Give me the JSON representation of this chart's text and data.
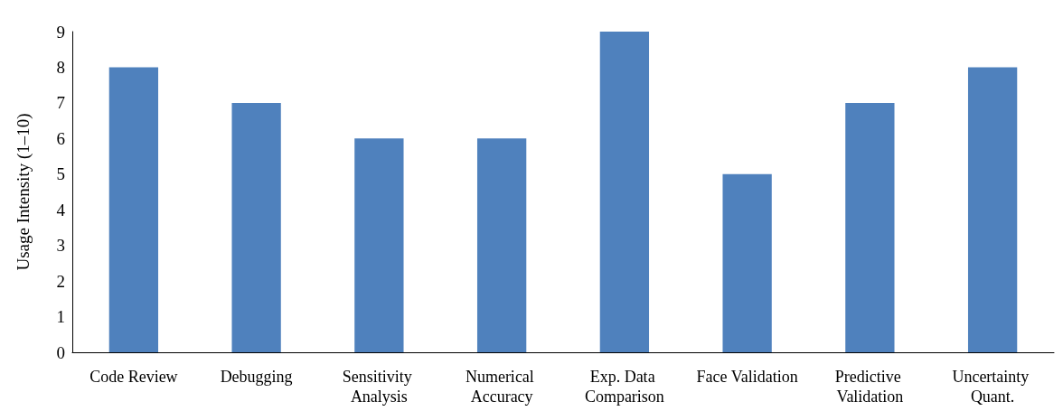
{
  "chart_data": {
    "type": "bar",
    "ylabel": "Usage Intensity (1–10)",
    "categories": [
      "Code Review",
      "Debugging",
      "Sensitivity Analysis",
      "Numerical Accuracy",
      "Exp. Data Comparison",
      "Face Validation",
      "Predictive Validation",
      "Uncertainty Quant."
    ],
    "values": [
      8,
      7,
      6,
      6,
      9,
      5,
      7,
      8
    ],
    "color": "#4f81bd",
    "ylim": [
      0,
      9
    ],
    "yticks": [
      0,
      1,
      2,
      3,
      4,
      5,
      6,
      7,
      8,
      9
    ],
    "grid": false
  }
}
